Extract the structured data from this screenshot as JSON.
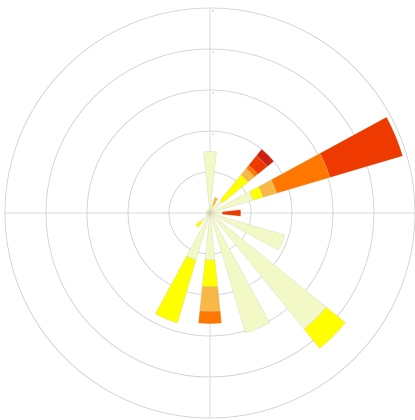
{
  "chart_data": {
    "type": "windrose",
    "directions": [
      0,
      22.5,
      45,
      67.5,
      90,
      112.5,
      135,
      157.5,
      180,
      202.5,
      225,
      247.5,
      270,
      292.5,
      315,
      337.5
    ],
    "series": [
      {
        "color": "#f3f9c6",
        "values": [
          1.5,
          0.1,
          0.4,
          1.1,
          0.3,
          1.9,
          3.65,
          3.05,
          1.15,
          1.2,
          0.3,
          0.1,
          0.1,
          0.1,
          0.1,
          0.1
        ]
      },
      {
        "color": "#ffff00",
        "values": [
          0,
          0.1,
          0.8,
          0.25,
          0,
          0,
          0.6,
          0,
          0.65,
          1.6,
          0.15,
          0,
          0,
          0,
          0,
          0
        ]
      },
      {
        "color": "#f8b848",
        "values": [
          0,
          0.2,
          0.2,
          0.35,
          0,
          0,
          0,
          0,
          0.6,
          0,
          0,
          0,
          0,
          0,
          0,
          0
        ]
      },
      {
        "color": "#ff7700",
        "values": [
          0,
          0,
          0.1,
          1.35,
          0,
          0,
          0,
          0,
          0.3,
          0,
          0,
          0,
          0,
          0,
          0,
          0
        ]
      },
      {
        "color": "#ee3a00",
        "values": [
          0,
          0,
          0.3,
          1.85,
          0.45,
          0,
          0,
          0,
          0,
          0,
          0,
          0,
          0,
          0,
          0,
          0
        ]
      },
      {
        "color": "#cc2010",
        "values": [
          0,
          0,
          0.2,
          0,
          0,
          0,
          0,
          0,
          0,
          0,
          0,
          0,
          0,
          0,
          0,
          0
        ]
      }
    ],
    "rlim": [
      0,
      5
    ],
    "rticks": [
      1,
      2,
      3,
      4,
      5
    ],
    "grid": true
  }
}
